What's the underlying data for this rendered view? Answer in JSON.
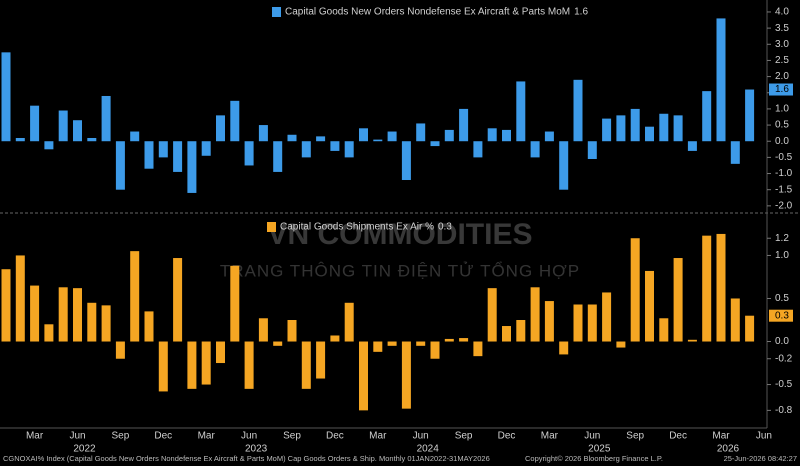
{
  "chart_data": [
    {
      "type": "bar",
      "legend": "top",
      "categories": [
        null,
        null,
        "Mar",
        null,
        null,
        "Jun",
        null,
        null,
        "Sep",
        null,
        null,
        "Dec",
        null,
        null,
        "Mar",
        null,
        null,
        "Jun",
        null,
        null,
        "Sep",
        null,
        null,
        "Dec",
        null,
        null,
        "Mar",
        null,
        null,
        "Jun",
        null,
        null,
        "Sep",
        null,
        null,
        "Dec",
        null,
        null,
        "Mar",
        null,
        null,
        "Jun",
        null,
        null,
        "Sep",
        null,
        null,
        "Dec",
        null,
        null,
        "Mar",
        null,
        null,
        "Jun"
      ],
      "category_years": [
        null,
        null,
        null,
        null,
        null,
        "2022",
        null,
        null,
        null,
        null,
        null,
        null,
        null,
        null,
        null,
        null,
        null,
        "2023",
        null,
        null,
        null,
        null,
        null,
        null,
        null,
        null,
        null,
        null,
        null,
        "2024",
        null,
        null,
        null,
        null,
        null,
        null,
        null,
        null,
        null,
        null,
        null,
        "2025",
        null,
        null,
        null,
        null,
        null,
        null,
        null,
        null,
        "2026",
        null,
        null,
        null
      ],
      "series": [
        {
          "name": "Capital Goods New Orders Nondefense Ex Aircraft & Parts MoM",
          "color": "#3d9be9",
          "values": [
            2.75,
            0.1,
            1.1,
            -0.25,
            0.95,
            0.65,
            0.1,
            1.4,
            -1.5,
            0.3,
            -0.85,
            -0.5,
            -0.95,
            -1.6,
            -0.45,
            0.8,
            1.25,
            -0.75,
            0.5,
            -0.95,
            0.2,
            -0.5,
            0.15,
            -0.3,
            -0.5,
            0.4,
            0.05,
            0.3,
            -1.2,
            0.55,
            -0.15,
            0.35,
            1.0,
            -0.5,
            0.4,
            0.35,
            1.85,
            -0.5,
            0.3,
            -1.5,
            1.9,
            -0.55,
            0.7,
            0.8,
            1.0,
            0.45,
            0.85,
            0.8,
            -0.3,
            1.55,
            3.8,
            -0.7,
            1.6,
            null
          ]
        }
      ],
      "ylim": [
        -2.19,
        4.37
      ],
      "yticks": [
        {
          "value": 4,
          "label": "4.0"
        },
        3.5,
        {
          "value": 3,
          "label": "3.0"
        },
        2.5,
        {
          "value": 2,
          "label": "2.0"
        },
        1.5,
        {
          "value": 1,
          "label": "1.0"
        },
        0.5,
        {
          "value": 0,
          "label": "0.0"
        },
        -0.5,
        {
          "value": -1,
          "label": "-1.0"
        },
        -1.5,
        {
          "value": -2,
          "label": "-2.0"
        }
      ]
    },
    {
      "type": "bar",
      "legend": "top",
      "series": [
        {
          "name": "Capital Goods Shipments Ex Air %",
          "color": "#f5a623",
          "values": [
            0.84,
            1.0,
            0.65,
            0.2,
            0.63,
            0.62,
            0.45,
            0.42,
            -0.2,
            1.05,
            0.35,
            -0.58,
            0.97,
            -0.55,
            -0.5,
            -0.25,
            0.88,
            -0.55,
            0.27,
            -0.05,
            0.25,
            -0.55,
            -0.43,
            0.07,
            0.45,
            -0.8,
            -0.12,
            -0.05,
            -0.78,
            -0.05,
            -0.2,
            0.03,
            0.04,
            -0.17,
            0.62,
            0.18,
            0.25,
            0.63,
            0.47,
            -0.15,
            0.43,
            0.43,
            0.57,
            -0.07,
            1.2,
            0.82,
            0.27,
            0.97,
            0.02,
            1.23,
            1.25,
            0.5,
            0.3,
            null
          ]
        }
      ],
      "ylim": [
        -0.97,
        1.47
      ],
      "yticks": [
        1.2,
        {
          "value": 1,
          "label": "1.0"
        },
        0.5,
        {
          "value": 0,
          "label": "0.0"
        },
        -0.2,
        -0.5,
        -0.8
      ]
    }
  ],
  "watermark": {
    "title": "VN COMMODITIES",
    "subtitle": "TRANG THÔNG TIN ĐIỆN TỬ TỔNG HỢP"
  },
  "footer": {
    "source": "CGNOXAI% Index (Capital Goods New Orders Nondefense Ex Aircraft & Parts MoM) Cap Goods Orders & Ship. Monthly 01JAN2022-31MAY2026",
    "copyright": "Copyright© 2026 Bloomberg Finance L.P.",
    "timestamp": "25-Jun-2026 08:42:27"
  }
}
